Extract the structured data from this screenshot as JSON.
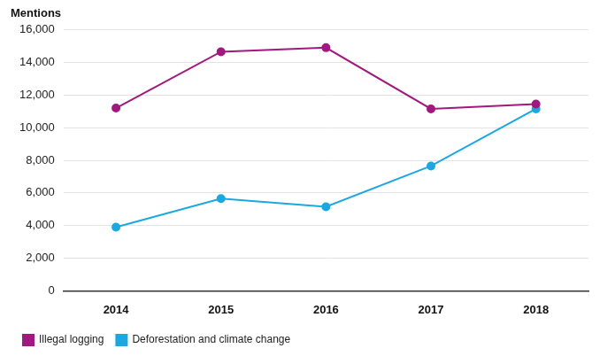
{
  "chart_data": {
    "type": "line",
    "y_label": "Mentions",
    "categories": [
      "2014",
      "2015",
      "2016",
      "2017",
      "2018"
    ],
    "series": [
      {
        "name": "Illegal logging",
        "color": "#a0197e",
        "values": [
          11200,
          14650,
          14900,
          11150,
          11450
        ]
      },
      {
        "name": "Deforestation and climate change",
        "color": "#1ba8e0",
        "values": [
          3900,
          5650,
          5150,
          7650,
          11150
        ]
      }
    ],
    "ylim": [
      0,
      16000
    ],
    "yticks": [
      0,
      {
        "value": 2000,
        "label": "2,000"
      },
      {
        "value": 4000,
        "label": "4,000"
      },
      {
        "value": 6000,
        "label": "6,000"
      },
      {
        "value": 8000,
        "label": "8,000"
      },
      {
        "value": 10000,
        "label": "10,000"
      },
      {
        "value": 12000,
        "label": "12,000"
      },
      {
        "value": 14000,
        "label": "14,000"
      },
      {
        "value": 16000,
        "label": "16,000"
      }
    ],
    "grid": true,
    "legend": "bottom-left",
    "marker": "circle",
    "line_style": "solid"
  }
}
